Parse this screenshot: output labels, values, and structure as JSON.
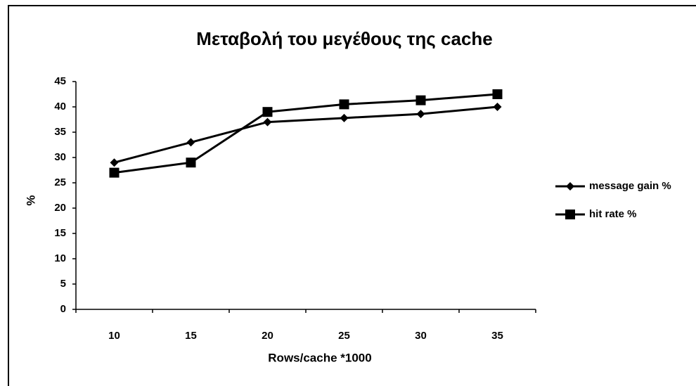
{
  "chart_data": {
    "type": "line",
    "title": "Μεταβολή του μεγέθους της cache",
    "x_label": "Rows/cache *1000",
    "y_label": "%",
    "categories": [
      "10",
      "15",
      "20",
      "25",
      "30",
      "35"
    ],
    "series": [
      {
        "name": "message gain %",
        "color": "#000000",
        "marker": "diamond",
        "values": [
          29,
          33,
          37,
          37.8,
          38.6,
          40
        ]
      },
      {
        "name": "hit rate %",
        "color": "#000000",
        "marker": "square",
        "values": [
          27,
          29,
          39,
          40.5,
          41.3,
          42.5
        ]
      }
    ],
    "ylim": [
      0,
      45
    ],
    "yticks": [
      0,
      5,
      10,
      15,
      20,
      25,
      30,
      35,
      40,
      45
    ],
    "grid": false,
    "legend": "right"
  }
}
